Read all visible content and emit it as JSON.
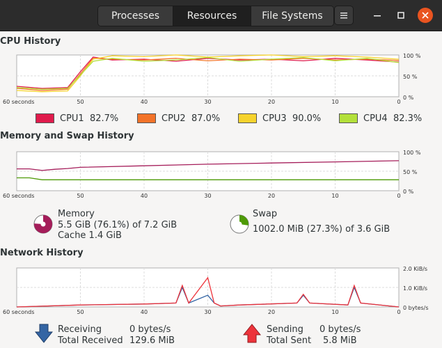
{
  "tabs": [
    {
      "label": "Processes",
      "active": false
    },
    {
      "label": "Resources",
      "active": true
    },
    {
      "label": "File Systems",
      "active": false
    }
  ],
  "menu_icon": "hamburger-icon",
  "window_icons": [
    "minimize-icon",
    "maximize-icon",
    "close-icon"
  ],
  "colors": {
    "cpu1": "#e01b4c",
    "cpu2": "#f37329",
    "cpu3": "#f6d32d",
    "cpu4": "#b3e03a",
    "memory": "#a51d5a",
    "swap": "#4e9a06",
    "receiving": "#3465a4",
    "sending": "#ed333b"
  },
  "cpu": {
    "title": "CPU History",
    "legend": [
      {
        "label": "CPU1",
        "value": "82.7%"
      },
      {
        "label": "CPU2",
        "value": "87.0%"
      },
      {
        "label": "CPU3",
        "value": "90.0%"
      },
      {
        "label": "CPU4",
        "value": "82.3%"
      }
    ]
  },
  "memory": {
    "title": "Memory and Swap History",
    "mem_label": "Memory",
    "mem_value": "5.5 GiB (76.1%) of 7.2 GiB",
    "mem_cache": "Cache 1.4 GiB",
    "mem_fraction": 0.761,
    "swap_label": "Swap",
    "swap_value": "1002.0 MiB (27.3%) of 3.6 GiB",
    "swap_fraction": 0.273
  },
  "network": {
    "title": "Network History",
    "receiving_label": "Receiving",
    "receiving_value": "0 bytes/s",
    "total_received_label": "Total Received",
    "total_received_value": "129.6 MiB",
    "sending_label": "Sending",
    "sending_value": "0 bytes/s",
    "total_sent_label": "Total Sent",
    "total_sent_value": "5.8 MiB"
  },
  "x_axis": {
    "start_label": "60 seconds",
    "ticks": [
      "50",
      "40",
      "30",
      "20",
      "10",
      "0"
    ]
  },
  "percent_axis": [
    "100 %",
    "50 %",
    "0 %"
  ],
  "network_axis": [
    "2.0 KiB/s",
    "1.0 KiB/s",
    "0 bytes/s"
  ],
  "chart_data": [
    {
      "type": "line",
      "title": "CPU History",
      "x": [
        60,
        56,
        52,
        50,
        48,
        45,
        40,
        35,
        30,
        25,
        20,
        15,
        10,
        5,
        0
      ],
      "xlabel": "60 seconds",
      "ylim": [
        0,
        100
      ],
      "series": [
        {
          "name": "CPU1",
          "values": [
            25,
            20,
            22,
            60,
            95,
            88,
            90,
            85,
            92,
            88,
            90,
            86,
            92,
            88,
            83
          ]
        },
        {
          "name": "CPU2",
          "values": [
            20,
            15,
            18,
            55,
            92,
            90,
            88,
            92,
            86,
            90,
            88,
            92,
            88,
            90,
            87
          ]
        },
        {
          "name": "CPU3",
          "values": [
            15,
            12,
            14,
            50,
            90,
            98,
            96,
            100,
            95,
            98,
            100,
            96,
            98,
            95,
            90
          ]
        },
        {
          "name": "CPU4",
          "values": [
            22,
            18,
            20,
            52,
            85,
            92,
            85,
            88,
            94,
            85,
            90,
            94,
            86,
            92,
            82
          ]
        }
      ]
    },
    {
      "type": "line",
      "title": "Memory and Swap History",
      "x": [
        60,
        58,
        56,
        54,
        52,
        50,
        40,
        30,
        20,
        10,
        0
      ],
      "xlabel": "60 seconds",
      "ylim": [
        0,
        100
      ],
      "series": [
        {
          "name": "Memory",
          "values": [
            56,
            56,
            52,
            55,
            57,
            60,
            64,
            68,
            71,
            74,
            77
          ]
        },
        {
          "name": "Swap",
          "values": [
            33,
            33,
            28,
            28,
            28,
            28,
            28,
            28,
            28,
            28,
            28
          ]
        }
      ]
    },
    {
      "type": "line",
      "title": "Network History",
      "x": [
        60,
        50,
        40,
        35,
        34,
        33,
        30,
        29,
        28,
        25,
        16,
        15,
        14,
        8,
        7,
        6,
        0
      ],
      "xlabel": "60 seconds",
      "ylim": [
        0,
        2.0
      ],
      "series": [
        {
          "name": "Receiving",
          "values": [
            0,
            0.1,
            0.15,
            0.2,
            1.0,
            0.2,
            0.6,
            0.2,
            0.05,
            0.1,
            0.2,
            0.6,
            0.2,
            0.1,
            1.0,
            0.2,
            0
          ]
        },
        {
          "name": "Sending",
          "values": [
            0,
            0.1,
            0.15,
            0.2,
            1.1,
            0.2,
            1.5,
            0.2,
            0.05,
            0.1,
            0.2,
            0.65,
            0.2,
            0.1,
            1.1,
            0.2,
            0
          ]
        }
      ]
    }
  ]
}
